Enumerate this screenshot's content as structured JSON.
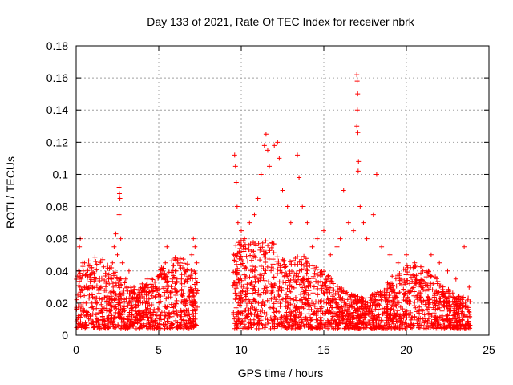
{
  "chart_data": {
    "type": "scatter",
    "title": "Day 133 of 2021, Rate Of TEC Index for receiver nbrk",
    "xlabel": "GPS time / hours",
    "ylabel": "ROTI / TECUs",
    "xlim": [
      0,
      25
    ],
    "ylim": [
      0,
      0.18
    ],
    "x_ticks": [
      "0",
      "5",
      "10",
      "15",
      "20",
      "25"
    ],
    "y_ticks": [
      "0",
      "0.02",
      "0.04",
      "0.06",
      "0.08",
      "0.1",
      "0.12",
      "0.14",
      "0.16",
      "0.18"
    ],
    "grid": true,
    "marker": "+",
    "color": "#ff0000",
    "series": [
      {
        "points": [
          [
            0.1,
            0.025
          ],
          [
            0.15,
            0.04
          ],
          [
            0.2,
            0.055
          ],
          [
            0.25,
            0.06
          ],
          [
            0.3,
            0.035
          ],
          [
            0.4,
            0.045
          ],
          [
            0.5,
            0.03
          ],
          [
            0.6,
            0.02
          ],
          [
            0.8,
            0.025
          ],
          [
            1.0,
            0.03
          ],
          [
            1.2,
            0.035
          ],
          [
            1.5,
            0.03
          ],
          [
            1.8,
            0.028
          ],
          [
            2.0,
            0.032
          ],
          [
            2.2,
            0.045
          ],
          [
            2.3,
            0.055
          ],
          [
            2.4,
            0.063
          ],
          [
            2.5,
            0.05
          ],
          [
            2.6,
            0.092
          ],
          [
            2.62,
            0.088
          ],
          [
            2.65,
            0.085
          ],
          [
            2.6,
            0.075
          ],
          [
            2.7,
            0.06
          ],
          [
            2.8,
            0.045
          ],
          [
            3.0,
            0.035
          ],
          [
            3.2,
            0.04
          ],
          [
            3.5,
            0.03
          ],
          [
            3.8,
            0.028
          ],
          [
            4.0,
            0.032
          ],
          [
            4.3,
            0.035
          ],
          [
            4.6,
            0.03
          ],
          [
            5.0,
            0.025
          ],
          [
            5.2,
            0.04
          ],
          [
            5.4,
            0.045
          ],
          [
            5.5,
            0.055
          ],
          [
            5.8,
            0.035
          ],
          [
            6.0,
            0.04
          ],
          [
            6.3,
            0.045
          ],
          [
            6.6,
            0.04
          ],
          [
            7.0,
            0.05
          ],
          [
            7.1,
            0.06
          ],
          [
            7.2,
            0.055
          ],
          [
            7.3,
            0.045
          ],
          [
            9.6,
            0.112
          ],
          [
            9.65,
            0.105
          ],
          [
            9.7,
            0.095
          ],
          [
            9.75,
            0.08
          ],
          [
            9.8,
            0.07
          ],
          [
            10.0,
            0.065
          ],
          [
            10.2,
            0.06
          ],
          [
            10.5,
            0.07
          ],
          [
            10.8,
            0.075
          ],
          [
            11.0,
            0.085
          ],
          [
            11.2,
            0.1
          ],
          [
            11.4,
            0.118
          ],
          [
            11.5,
            0.125
          ],
          [
            11.6,
            0.115
          ],
          [
            11.7,
            0.105
          ],
          [
            12.0,
            0.118
          ],
          [
            12.2,
            0.12
          ],
          [
            12.3,
            0.11
          ],
          [
            12.5,
            0.09
          ],
          [
            12.8,
            0.08
          ],
          [
            13.0,
            0.07
          ],
          [
            13.4,
            0.112
          ],
          [
            13.5,
            0.098
          ],
          [
            13.7,
            0.08
          ],
          [
            14.0,
            0.07
          ],
          [
            14.3,
            0.055
          ],
          [
            14.6,
            0.06
          ],
          [
            15.0,
            0.065
          ],
          [
            15.4,
            0.05
          ],
          [
            15.8,
            0.055
          ],
          [
            16.0,
            0.06
          ],
          [
            16.2,
            0.09
          ],
          [
            16.5,
            0.07
          ],
          [
            16.8,
            0.065
          ],
          [
            17.0,
            0.162
          ],
          [
            17.02,
            0.158
          ],
          [
            17.05,
            0.15
          ],
          [
            17.03,
            0.14
          ],
          [
            17.0,
            0.13
          ],
          [
            17.06,
            0.126
          ],
          [
            17.1,
            0.108
          ],
          [
            17.08,
            0.102
          ],
          [
            17.2,
            0.08
          ],
          [
            17.4,
            0.07
          ],
          [
            17.6,
            0.06
          ],
          [
            18.0,
            0.075
          ],
          [
            18.2,
            0.1
          ],
          [
            18.5,
            0.055
          ],
          [
            19.0,
            0.05
          ],
          [
            19.5,
            0.045
          ],
          [
            20.0,
            0.05
          ],
          [
            20.5,
            0.045
          ],
          [
            21.0,
            0.04
          ],
          [
            21.5,
            0.05
          ],
          [
            22.0,
            0.045
          ],
          [
            22.5,
            0.04
          ],
          [
            23.0,
            0.035
          ],
          [
            23.5,
            0.055
          ],
          [
            23.8,
            0.03
          ]
        ]
      }
    ]
  }
}
